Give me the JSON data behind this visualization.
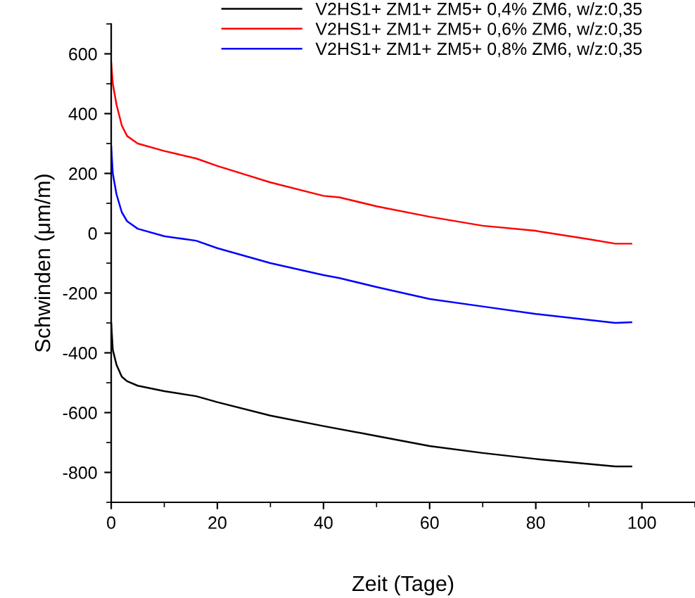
{
  "chart_data": {
    "type": "line",
    "xlabel": "Zeit (Tage)",
    "ylabel": "Schwinden (μm/m)",
    "xlim": [
      0,
      110
    ],
    "ylim": [
      -900,
      700
    ],
    "xticks": [
      0,
      20,
      40,
      60,
      80,
      100
    ],
    "yticks": [
      -800,
      -600,
      -400,
      -200,
      0,
      200,
      400,
      600
    ],
    "grid": false,
    "legend": "top",
    "marker": "none",
    "line_style": "solid",
    "series": [
      {
        "name": "V2HS1+ ZM1+ ZM5+ 0,4% ZM6, w/z:0,35",
        "color": "#000000",
        "x": [
          0,
          0.3,
          1,
          2,
          3,
          5,
          10,
          16,
          20,
          30,
          40,
          50,
          60,
          70,
          80,
          90,
          95,
          98
        ],
        "values": [
          -300,
          -390,
          -440,
          -480,
          -495,
          -510,
          -528,
          -545,
          -565,
          -610,
          -645,
          -678,
          -712,
          -735,
          -755,
          -772,
          -780,
          -780
        ]
      },
      {
        "name": "V2HS1+ ZM1+ ZM5+ 0,6% ZM6, w/z:0,35",
        "color": "#ff0000",
        "x": [
          0,
          0.3,
          1,
          2,
          3,
          5,
          10,
          16,
          20,
          30,
          40,
          43,
          50,
          60,
          70,
          80,
          90,
          95,
          98
        ],
        "values": [
          570,
          500,
          430,
          360,
          325,
          300,
          275,
          250,
          225,
          170,
          125,
          120,
          90,
          55,
          25,
          8,
          -20,
          -35,
          -35
        ]
      },
      {
        "name": "V2HS1+ ZM1+ ZM5+ 0,8% ZM6, w/z:0,35",
        "color": "#0000ff",
        "x": [
          0,
          0.3,
          1,
          2,
          3,
          5,
          10,
          16,
          20,
          30,
          40,
          43,
          50,
          60,
          70,
          80,
          90,
          95,
          98
        ],
        "values": [
          290,
          200,
          130,
          70,
          40,
          15,
          -10,
          -25,
          -50,
          -100,
          -140,
          -150,
          -180,
          -220,
          -245,
          -270,
          -290,
          -300,
          -298
        ]
      }
    ]
  }
}
